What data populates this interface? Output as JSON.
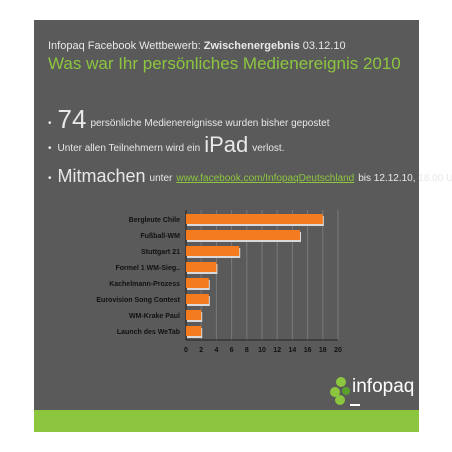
{
  "header": {
    "line1_prefix": "Infopaq Facebook Wettbewerb: ",
    "line1_bold": "Zwischenergebnis",
    "line1_date": " 03.12.10",
    "title": "Was war Ihr persönliches Medienereignis 2010"
  },
  "bullets": {
    "b1_big": "74",
    "b1_text": "persönliche Medienereignisse wurden bisher gepostet",
    "b2_text": "Unter allen Teilnehmern wird ein",
    "b2_big": "iPad",
    "b2_tail": "verlost.",
    "b3_big": "Mitmachen",
    "b3_pre": "unter",
    "b3_link": "www.facebook.com/InfopaqDeutschland",
    "b3_tail": "bis 12.12.10, 18.00 Uhr",
    "dot": "•"
  },
  "logo": {
    "text": "infopaq"
  },
  "colors": {
    "panel": "#5a5a5a",
    "accent_green": "#8cc63f",
    "bar_orange": "#f47b20"
  },
  "chart_data": {
    "type": "bar",
    "orientation": "horizontal",
    "categories": [
      "Bergleute Chile",
      "Fußball-WM",
      "Stuttgart 21",
      "Formel 1 WM-Sieg..",
      "Kachelmann-Prozess",
      "Eurovision Song Contest",
      "WM-Krake Paul",
      "Launch des WeTab"
    ],
    "values": [
      18,
      15,
      7,
      4,
      3,
      3,
      2,
      2
    ],
    "xlim": [
      0,
      20
    ],
    "xticks": [
      "0",
      "2",
      "4",
      "6",
      "8",
      "10",
      "12",
      "14",
      "16",
      "18",
      "20"
    ],
    "grid": true
  }
}
